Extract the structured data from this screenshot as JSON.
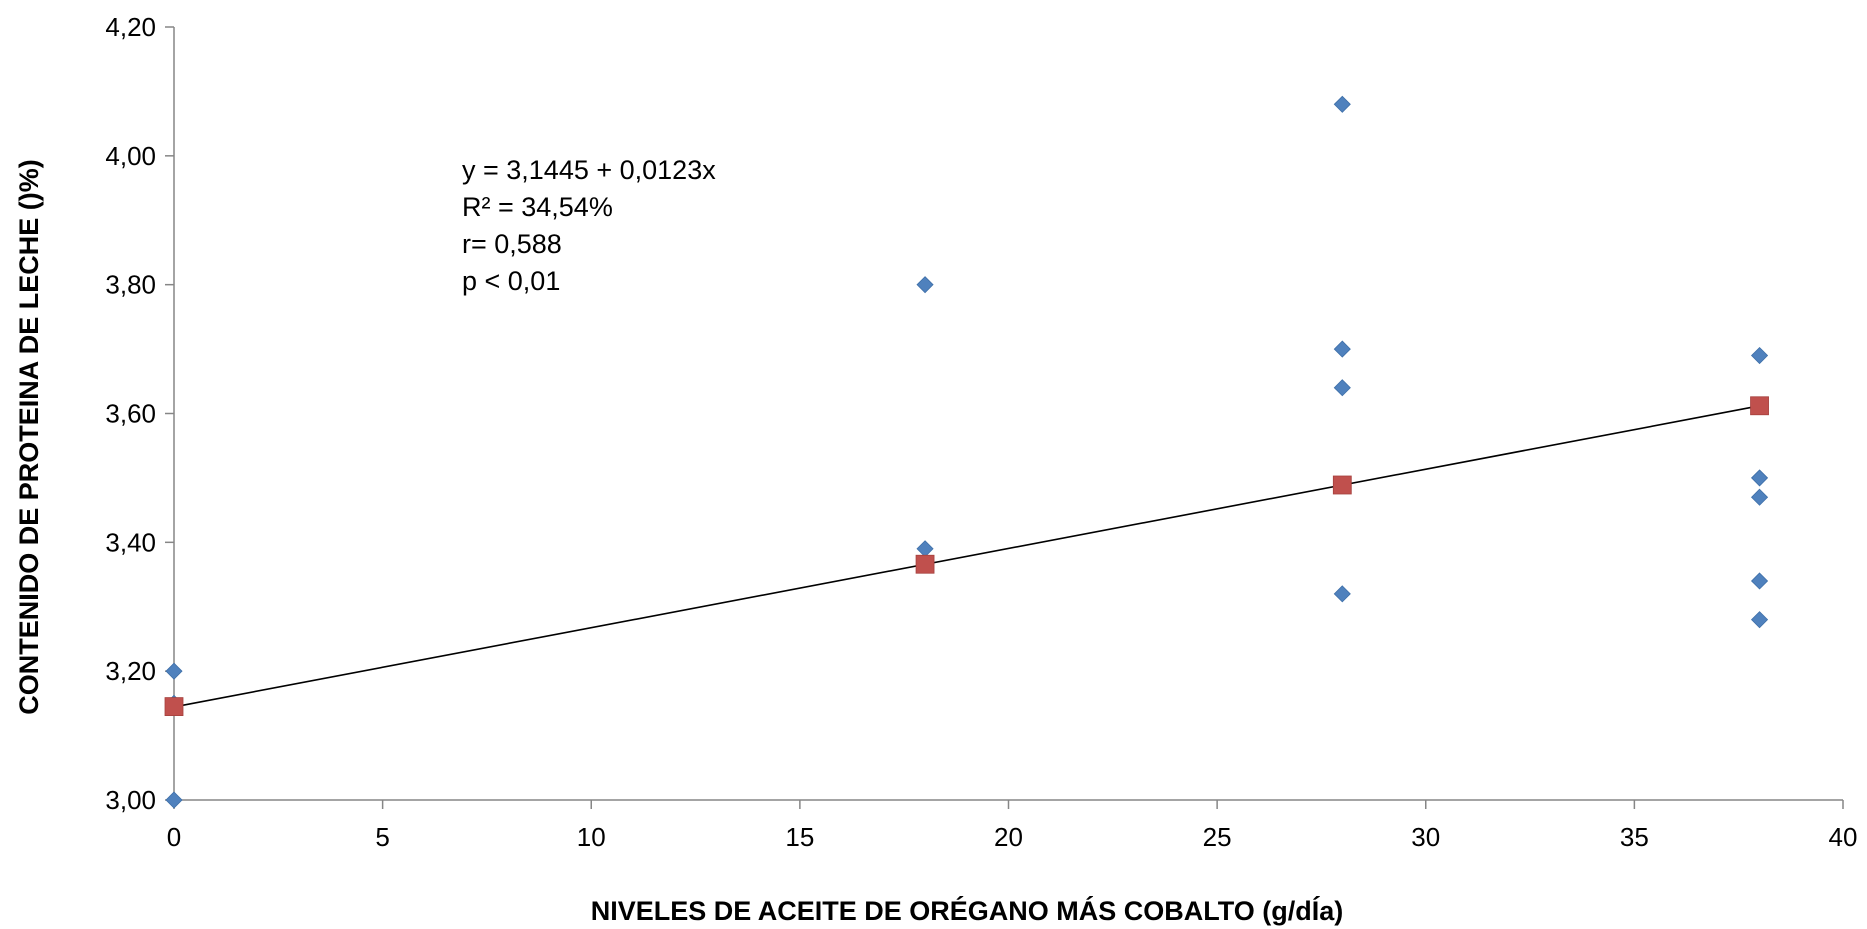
{
  "chart_data": {
    "type": "scatter",
    "xlabel": "NIVELES DE ACEITE DE ORÉGANO MÁS COBALTO (g/dÍa)",
    "ylabel": "CONTENIDO DE PROTEINA DE LECHE ()%)",
    "xlim": [
      0,
      40
    ],
    "ylim": [
      3.0,
      4.2
    ],
    "x_ticks": [
      0,
      5,
      10,
      15,
      20,
      25,
      30,
      35,
      40
    ],
    "x_tick_labels": [
      "0",
      "5",
      "10",
      "15",
      "20",
      "25",
      "30",
      "35",
      "40"
    ],
    "y_ticks": [
      3.0,
      3.2,
      3.4,
      3.6,
      3.8,
      4.0,
      4.2
    ],
    "y_tick_labels": [
      "3,00",
      "3,20",
      "3,40",
      "3,60",
      "3,80",
      "4,00",
      "4,20"
    ],
    "grid": false,
    "series": [
      {
        "marker": "diamond",
        "color": "#4F81BD",
        "points": [
          [
            0,
            3.2
          ],
          [
            0,
            3.15
          ],
          [
            0,
            3.0
          ],
          [
            18,
            3.8
          ],
          [
            18,
            3.39
          ],
          [
            28,
            4.08
          ],
          [
            28,
            3.7
          ],
          [
            28,
            3.64
          ],
          [
            28,
            3.32
          ],
          [
            38,
            3.69
          ],
          [
            38,
            3.5
          ],
          [
            38,
            3.47
          ],
          [
            38,
            3.34
          ],
          [
            38,
            3.28
          ]
        ]
      },
      {
        "marker": "square",
        "color": "#C0504D",
        "points": [
          [
            0,
            3.145
          ],
          [
            18,
            3.366
          ],
          [
            28,
            3.489
          ],
          [
            38,
            3.612
          ]
        ]
      }
    ],
    "trendline": {
      "intercept": 3.1445,
      "slope": 0.0123,
      "x_range": [
        0,
        38
      ],
      "color": "#000000"
    },
    "annotations": [
      "y =  3,1445 +  0,0123x",
      "R² = 34,54%",
      "r= 0,588",
      "p <  0,01"
    ]
  }
}
